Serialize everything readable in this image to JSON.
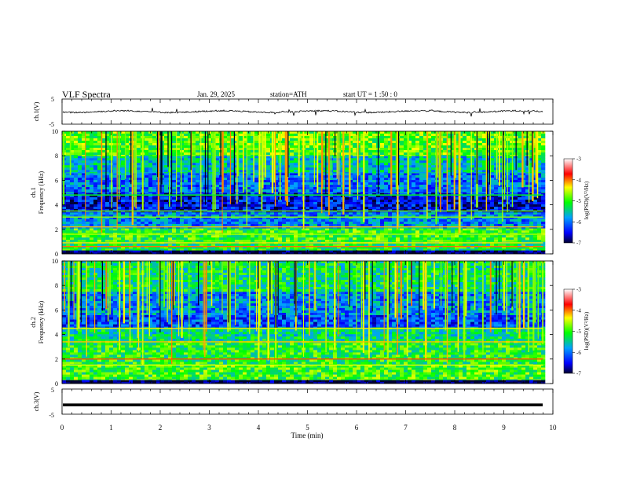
{
  "header": {
    "title": "VLF  Spectra",
    "date": "Jan. 29, 2025",
    "station": "station=ATH",
    "start": "start  UT  =    1  :50 : 0"
  },
  "panels": {
    "ch1_wave": {
      "ylabel": "ch.1(V)",
      "ytick_top": "5",
      "ytick_bottom": "-5"
    },
    "ch1_spec": {
      "ylabel_line1": "ch.1",
      "ylabel_line2": "Frequency  (kHz)"
    },
    "ch2_spec": {
      "ylabel_line1": "ch.2",
      "ylabel_line2": "Frequency  (kHz)"
    },
    "ch3_wave": {
      "ylabel": "ch.3(V)",
      "ytick_top": "5",
      "ytick_bottom": "-5"
    }
  },
  "colorbar": {
    "label": "log(PSD)(V²/Hz)",
    "ticks": [
      "-3",
      "-4",
      "-5",
      "-6",
      "-7"
    ],
    "colors": [
      "#ffffff",
      "#ff0000",
      "#ffff00",
      "#00ff00",
      "#00a0ff",
      "#0000ff",
      "#000030"
    ]
  },
  "chart_data": [
    {
      "type": "line",
      "panel": "ch.1 waveform",
      "ylabel": "ch.1(V)",
      "ylim": [
        -5,
        5
      ],
      "xlim": [
        0,
        10
      ],
      "x_extent_min": 9.8,
      "baseline_v": 0.0
    },
    {
      "type": "heatmap",
      "panel": "ch.1 spectrogram",
      "ylabel": "Frequency (kHz)",
      "ylim": [
        0,
        10
      ],
      "yticks": [
        "0",
        "2",
        "4",
        "6",
        "8",
        "10"
      ],
      "xlim": [
        0,
        10
      ],
      "x_extent_min": 9.8,
      "zlim": [
        -7,
        -3
      ],
      "bands": [
        {
          "f0": 0.0,
          "f1": 0.3,
          "log_psd": -7.0
        },
        {
          "f0": 0.3,
          "f1": 1.0,
          "log_psd": -5.2
        },
        {
          "f0": 1.0,
          "f1": 2.1,
          "log_psd": -5.0
        },
        {
          "f0": 2.1,
          "f1": 3.4,
          "log_psd": -5.9
        },
        {
          "f0": 3.4,
          "f1": 5.0,
          "log_psd": -6.5
        },
        {
          "f0": 5.0,
          "f1": 6.6,
          "log_psd": -6.0
        },
        {
          "f0": 6.6,
          "f1": 8.0,
          "log_psd": -5.6
        },
        {
          "f0": 8.0,
          "f1": 10.0,
          "log_psd": -4.9
        }
      ],
      "lines": [
        {
          "f": 0.6,
          "log_psd": -4.0
        },
        {
          "f": 0.9,
          "log_psd": -4.3
        },
        {
          "f": 1.6,
          "log_psd": -4.6
        },
        {
          "f": 2.2,
          "log_psd": -4.2
        },
        {
          "f": 3.0,
          "log_psd": -4.7
        },
        {
          "f": 3.5,
          "log_psd": -4.8
        },
        {
          "f": 4.8,
          "log_psd": -5.2
        }
      ]
    },
    {
      "type": "heatmap",
      "panel": "ch.2 spectrogram",
      "ylabel": "Frequency (kHz)",
      "ylim": [
        0,
        10
      ],
      "yticks": [
        "0",
        "2",
        "4",
        "6",
        "8",
        "10"
      ],
      "xlim": [
        0,
        10
      ],
      "x_extent_min": 9.8,
      "zlim": [
        -7,
        -3
      ],
      "bands": [
        {
          "f0": 0.0,
          "f1": 0.3,
          "log_psd": -7.0
        },
        {
          "f0": 0.3,
          "f1": 1.5,
          "log_psd": -5.0
        },
        {
          "f0": 1.5,
          "f1": 3.5,
          "log_psd": -5.1
        },
        {
          "f0": 3.5,
          "f1": 4.6,
          "log_psd": -5.4
        },
        {
          "f0": 4.6,
          "f1": 5.6,
          "log_psd": -6.2
        },
        {
          "f0": 5.6,
          "f1": 7.5,
          "log_psd": -5.9
        },
        {
          "f0": 7.5,
          "f1": 10.0,
          "log_psd": -5.3
        }
      ],
      "lines": [
        {
          "f": 1.5,
          "log_psd": -4.4
        },
        {
          "f": 2.0,
          "log_psd": -3.9
        },
        {
          "f": 3.4,
          "log_psd": -4.2
        },
        {
          "f": 4.5,
          "log_psd": -4.3
        }
      ]
    },
    {
      "type": "line",
      "panel": "ch.3 waveform",
      "ylabel": "ch.3(V)",
      "ylim": [
        -5,
        5
      ],
      "xlim": [
        0,
        10
      ],
      "x_extent_min": 9.8,
      "baseline_v": -1.3
    }
  ],
  "xaxis": {
    "label": "Time  (min)",
    "ticks": [
      "0",
      "1",
      "2",
      "3",
      "4",
      "5",
      "6",
      "7",
      "8",
      "9",
      "10"
    ]
  }
}
